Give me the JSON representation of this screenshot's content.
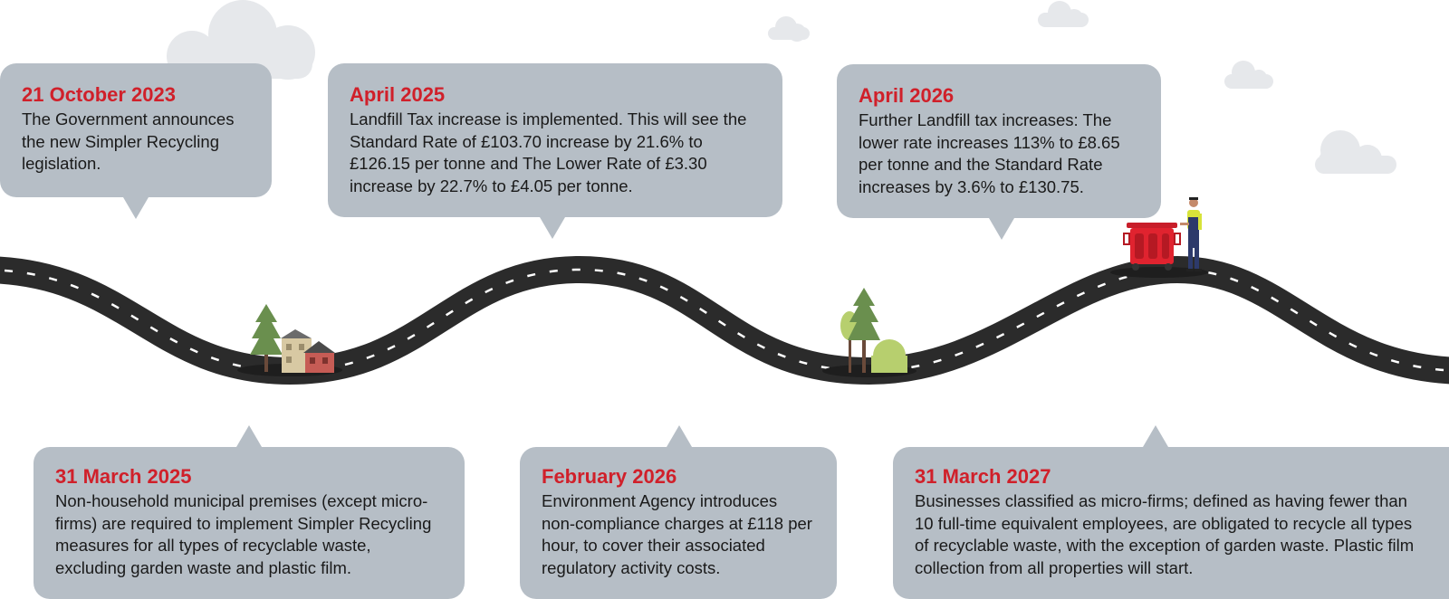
{
  "timeline": {
    "events": [
      {
        "date": "21 October 2023",
        "text": "The Government announces the new Simpler Recycling legislation."
      },
      {
        "date": "April 2025",
        "text": "Landfill Tax increase is implemented. This will see the Standard Rate of £103.70 increase by 21.6% to £126.15 per tonne and The Lower Rate of £3.30 increase by 22.7% to £4.05 per tonne."
      },
      {
        "date": "April 2026",
        "text": "Further Landfill tax increases: The lower rate increases 113% to £8.65 per tonne and the Standard Rate increases by 3.6% to £130.75."
      },
      {
        "date": "31 March 2025",
        "text": "Non-household municipal premises (except micro-firms) are required to implement Simpler Recycling measures for all types of recyclable waste, excluding garden waste and plastic film."
      },
      {
        "date": "February 2026",
        "text": "Environment Agency introduces non-compliance charges at £118 per hour, to cover their associated regulatory activity costs."
      },
      {
        "date": "31 March 2027",
        "text": "Businesses classified as micro-firms; defined as having fewer than 10 full-time equivalent employees, are obligated to recycle all types of recyclable waste, with the exception of garden waste. Plastic film collection from all properties will start."
      }
    ]
  },
  "colors": {
    "date": "#d0202a",
    "bubble": "#b6bec6",
    "road": "#2b2b2b",
    "cloud": "#e6e8eb"
  },
  "icons": [
    "cloud-icon",
    "tree-icon",
    "house-icon",
    "bush-icon",
    "wheelie-bin-icon",
    "waste-worker-icon"
  ]
}
